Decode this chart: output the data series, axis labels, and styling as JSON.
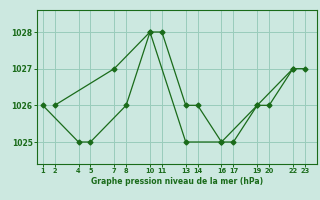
{
  "line1_x": [
    1,
    4,
    5,
    8,
    10,
    11,
    13,
    14,
    16,
    17,
    19,
    20,
    22,
    23
  ],
  "line1_y": [
    1026,
    1025,
    1025,
    1026,
    1028,
    1028,
    1026,
    1026,
    1025,
    1025,
    1026,
    1026,
    1027,
    1027
  ],
  "line2_x": [
    2,
    7,
    10,
    13,
    16,
    19,
    22
  ],
  "line2_y": [
    1026,
    1027,
    1028,
    1025,
    1025,
    1026,
    1027
  ],
  "line_color": "#1a6b1a",
  "bg_color": "#cce8e0",
  "grid_color": "#99ccbb",
  "xlabel": "Graphe pression niveau de la mer (hPa)",
  "xticks": [
    1,
    2,
    4,
    5,
    7,
    8,
    10,
    11,
    13,
    14,
    16,
    17,
    19,
    20,
    22,
    23
  ],
  "xtick_labels": [
    "1",
    "2",
    "4",
    "5",
    "7",
    "8",
    "10",
    "11",
    "13",
    "14",
    "16",
    "17",
    "19",
    "20",
    "22",
    "23"
  ],
  "yticks": [
    1025,
    1026,
    1027,
    1028
  ],
  "ylim": [
    1024.4,
    1028.6
  ],
  "xlim": [
    0.5,
    24.0
  ]
}
